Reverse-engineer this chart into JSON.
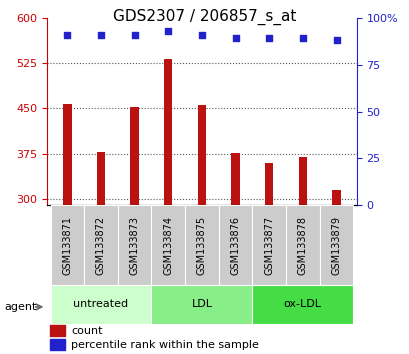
{
  "title": "GDS2307 / 206857_s_at",
  "samples": [
    "GSM133871",
    "GSM133872",
    "GSM133873",
    "GSM133874",
    "GSM133875",
    "GSM133876",
    "GSM133877",
    "GSM133878",
    "GSM133879"
  ],
  "count_values": [
    458,
    378,
    452,
    531,
    455,
    376,
    360,
    370,
    315
  ],
  "percentile_values": [
    91,
    91,
    91,
    93,
    91,
    89,
    89,
    89,
    88
  ],
  "ylim_left": [
    290,
    600
  ],
  "ylim_right": [
    0,
    100
  ],
  "yticks_left": [
    300,
    375,
    450,
    525,
    600
  ],
  "yticks_right": [
    0,
    25,
    50,
    75,
    100
  ],
  "bar_color": "#bb1111",
  "dot_color": "#2222cc",
  "bar_bottom": 290,
  "bar_width": 0.25,
  "groups": [
    {
      "label": "untreated",
      "indices": [
        0,
        1,
        2
      ],
      "color": "#ccffcc"
    },
    {
      "label": "LDL",
      "indices": [
        3,
        4,
        5
      ],
      "color": "#88ee88"
    },
    {
      "label": "ox-LDL",
      "indices": [
        6,
        7,
        8
      ],
      "color": "#44dd44"
    }
  ],
  "agent_label": "agent",
  "legend_count_label": "count",
  "legend_pct_label": "percentile rank within the sample",
  "grid_color": "#555555",
  "tick_color_left": "#cc0000",
  "tick_color_right": "#2222cc",
  "title_fontsize": 11,
  "tick_fontsize": 8,
  "label_fontsize": 7,
  "group_fontsize": 8,
  "legend_fontsize": 8
}
